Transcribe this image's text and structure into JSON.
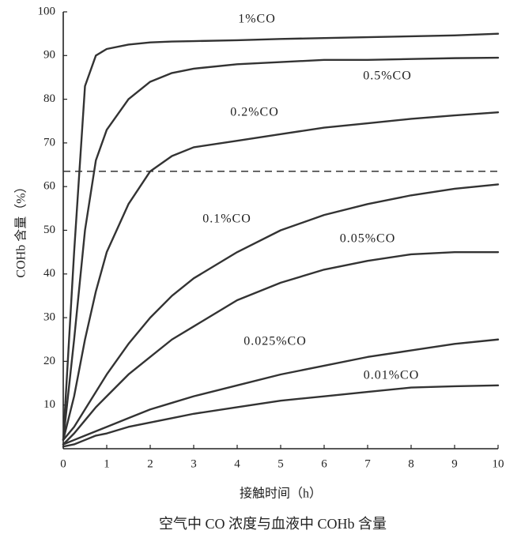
{
  "chart_data": {
    "type": "line",
    "caption": "空气中 CO 浓度与血液中 COHb 含量",
    "x_label": "接触时间（h）",
    "y_label": "COHb 含量（%）",
    "x": [
      0,
      0.25,
      0.5,
      0.75,
      1,
      1.5,
      2,
      2.5,
      3,
      4,
      5,
      6,
      7,
      8,
      9,
      10
    ],
    "series": [
      {
        "name": "1%CO",
        "color": "#333333",
        "values": [
          2,
          45,
          83,
          90,
          91.5,
          92.5,
          93,
          93.2,
          93.3,
          93.5,
          93.8,
          94,
          94.2,
          94.4,
          94.6,
          95
        ]
      },
      {
        "name": "0.5%CO",
        "color": "#333333",
        "values": [
          2,
          25,
          50,
          66,
          73,
          80,
          84,
          86,
          87,
          88,
          88.5,
          89,
          89,
          89.2,
          89.4,
          89.5
        ]
      },
      {
        "name": "0.2%CO",
        "color": "#333333",
        "values": [
          2,
          12,
          25,
          36,
          45,
          56,
          63.5,
          67,
          69,
          70.5,
          72,
          73.5,
          74.5,
          75.5,
          76.3,
          77
        ]
      },
      {
        "name": "0.1%CO",
        "color": "#333333",
        "values": [
          2,
          5,
          9,
          13,
          17,
          24,
          30,
          35,
          39,
          45,
          50,
          53.5,
          56,
          58,
          59.5,
          60.5
        ]
      },
      {
        "name": "0.05%CO",
        "color": "#333333",
        "values": [
          1,
          3.5,
          6.5,
          9.5,
          12,
          17,
          21,
          25,
          28,
          34,
          38,
          41,
          43,
          44.5,
          45,
          45
        ]
      },
      {
        "name": "0.025%CO",
        "color": "#333333",
        "values": [
          1,
          2,
          3,
          4,
          5,
          7,
          9,
          10.5,
          12,
          14.5,
          17,
          19,
          21,
          22.5,
          24,
          25
        ]
      },
      {
        "name": "0.01%CO",
        "color": "#333333",
        "values": [
          0.5,
          1,
          2,
          3,
          3.5,
          5,
          6,
          7,
          8,
          9.5,
          11,
          12,
          13,
          14,
          14.3,
          14.5
        ]
      }
    ],
    "reference_line": 63.5,
    "xlim": [
      0,
      10
    ],
    "ylim": [
      0,
      100
    ],
    "xticks": [
      0,
      1,
      2,
      3,
      4,
      5,
      6,
      7,
      8,
      9,
      10
    ],
    "yticks": [
      10,
      20,
      30,
      40,
      50,
      60,
      70,
      80,
      90,
      100
    ],
    "grid": false
  }
}
